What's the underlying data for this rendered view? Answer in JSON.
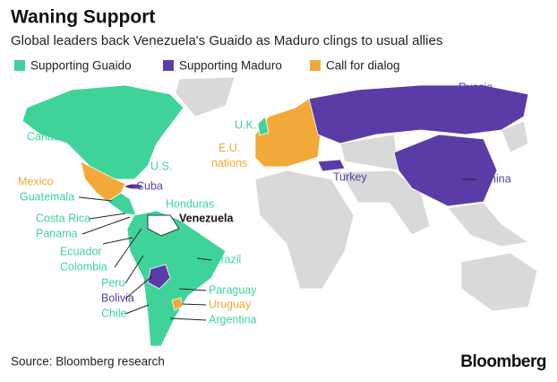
{
  "header": {
    "title": "Waning Support",
    "subtitle": "Global leaders back Venezuela's Guaido as Maduro clings to usual allies"
  },
  "legend": [
    {
      "label": "Supporting Guaido",
      "color": "#3fd39a"
    },
    {
      "label": "Supporting Maduro",
      "color": "#5b3ca6"
    },
    {
      "label": "Call for dialog",
      "color": "#f3a93a"
    }
  ],
  "labels": [
    {
      "text": "Canada",
      "group": 0
    },
    {
      "text": "U.S.",
      "group": 0
    },
    {
      "text": "Mexico",
      "group": 2
    },
    {
      "text": "Cuba",
      "group": 1
    },
    {
      "text": "Guatemala",
      "group": 0
    },
    {
      "text": "Honduras",
      "group": 0
    },
    {
      "text": "Costa Rica",
      "group": 0
    },
    {
      "text": "Panama",
      "group": 0
    },
    {
      "text": "Ecuador",
      "group": 0
    },
    {
      "text": "Colombia",
      "group": 0
    },
    {
      "text": "Brazil",
      "group": 0
    },
    {
      "text": "Peru",
      "group": 0
    },
    {
      "text": "Bolivia",
      "group": 1
    },
    {
      "text": "Chile",
      "group": 0
    },
    {
      "text": "Paraguay",
      "group": 0
    },
    {
      "text": "Uruguay",
      "group": 2
    },
    {
      "text": "Argentina",
      "group": 0
    },
    {
      "text": "U.K.",
      "group": 0
    },
    {
      "lines": [
        "E.U.",
        "nations"
      ],
      "group": 2
    },
    {
      "text": "Russia",
      "group": 1
    },
    {
      "text": "Turkey",
      "group": 1
    },
    {
      "text": "China",
      "group": 1
    }
  ],
  "focus": "Venezuela",
  "footer": {
    "source": "Source: Bloomberg research",
    "brand": "Bloomberg"
  }
}
